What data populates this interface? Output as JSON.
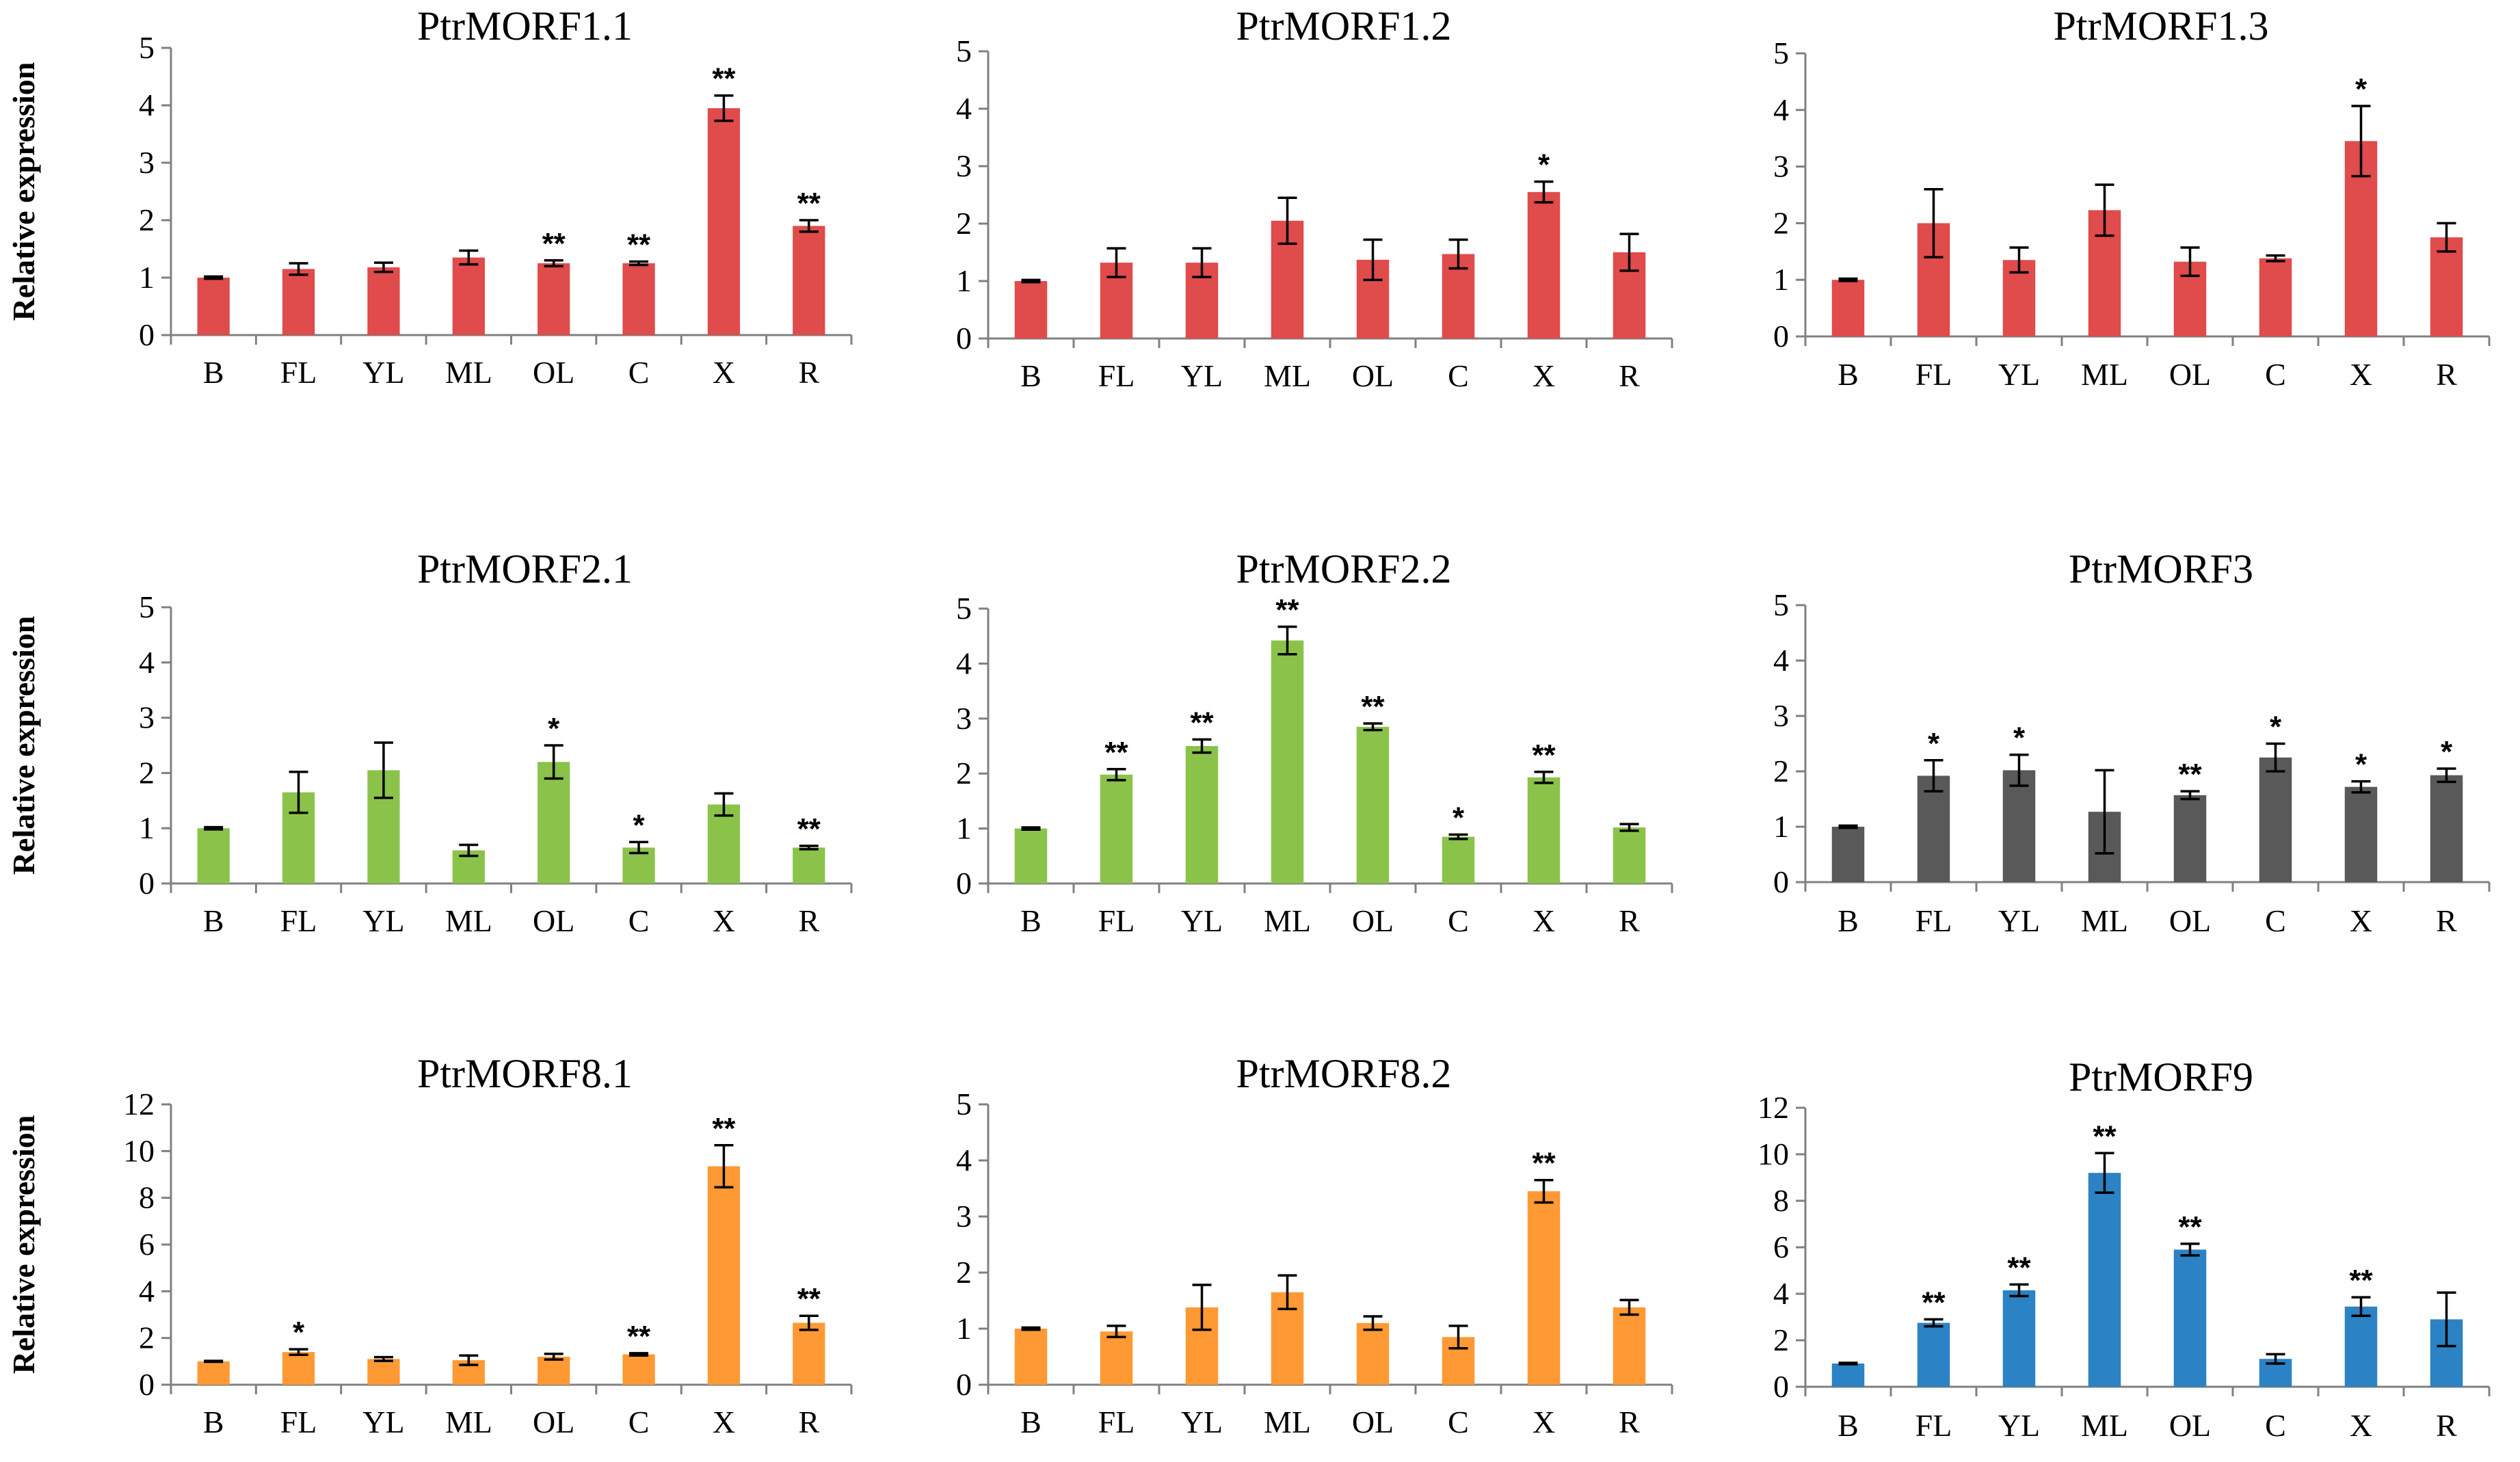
{
  "figure": {
    "y_axis_label": "Relative expression"
  },
  "chart_data": [
    {
      "type": "bar",
      "title": "PtrMORF1.1",
      "color": "#e04b4b",
      "categories": [
        "B",
        "FL",
        "YL",
        "ML",
        "OL",
        "C",
        "X",
        "R"
      ],
      "values": [
        1.0,
        1.15,
        1.18,
        1.35,
        1.25,
        1.25,
        3.95,
        1.9
      ],
      "errors": [
        0.02,
        0.1,
        0.08,
        0.12,
        0.05,
        0.03,
        0.22,
        0.1
      ],
      "significance": [
        "",
        "",
        "",
        "",
        "**",
        "**",
        "**",
        "**"
      ],
      "ylim": [
        0,
        5
      ],
      "yticks": [
        "0",
        "1",
        "2",
        "3",
        "4",
        "5"
      ],
      "ylabel": "Relative expression",
      "xlabel": ""
    },
    {
      "type": "bar",
      "title": "PtrMORF1.2",
      "color": "#e04b4b",
      "categories": [
        "B",
        "FL",
        "YL",
        "ML",
        "OL",
        "C",
        "X",
        "R"
      ],
      "values": [
        1.0,
        1.32,
        1.32,
        2.05,
        1.37,
        1.47,
        2.55,
        1.5
      ],
      "errors": [
        0.02,
        0.25,
        0.25,
        0.4,
        0.35,
        0.25,
        0.18,
        0.32
      ],
      "significance": [
        "",
        "",
        "",
        "",
        "",
        "",
        "*",
        ""
      ],
      "ylim": [
        0,
        5
      ],
      "yticks": [
        "0",
        "1",
        "2",
        "3",
        "4",
        "5"
      ],
      "ylabel": "",
      "xlabel": ""
    },
    {
      "type": "bar",
      "title": "PtrMORF1.3",
      "color": "#e04b4b",
      "categories": [
        "B",
        "FL",
        "YL",
        "ML",
        "OL",
        "C",
        "X",
        "R"
      ],
      "values": [
        1.0,
        2.0,
        1.35,
        2.23,
        1.32,
        1.38,
        3.45,
        1.75
      ],
      "errors": [
        0.02,
        0.6,
        0.22,
        0.45,
        0.25,
        0.05,
        0.62,
        0.25
      ],
      "significance": [
        "",
        "",
        "",
        "",
        "",
        "",
        "*",
        ""
      ],
      "ylim": [
        0,
        5
      ],
      "yticks": [
        "0",
        "1",
        "2",
        "3",
        "4",
        "5"
      ],
      "ylabel": "",
      "xlabel": ""
    },
    {
      "type": "bar",
      "title": "PtrMORF2.1",
      "color": "#8bc34a",
      "categories": [
        "B",
        "FL",
        "YL",
        "ML",
        "OL",
        "C",
        "X",
        "R"
      ],
      "values": [
        1.0,
        1.65,
        2.05,
        0.6,
        2.2,
        0.65,
        1.43,
        0.65
      ],
      "errors": [
        0.02,
        0.37,
        0.5,
        0.1,
        0.3,
        0.1,
        0.2,
        0.03
      ],
      "significance": [
        "",
        "",
        "",
        "",
        "*",
        "*",
        "",
        "**"
      ],
      "ylim": [
        0,
        5
      ],
      "yticks": [
        "0",
        "1",
        "2",
        "3",
        "4",
        "5"
      ],
      "ylabel": "Relative expression",
      "xlabel": ""
    },
    {
      "type": "bar",
      "title": "PtrMORF2.2",
      "color": "#8bc34a",
      "categories": [
        "B",
        "FL",
        "YL",
        "ML",
        "OL",
        "C",
        "X",
        "R"
      ],
      "values": [
        1.0,
        1.98,
        2.5,
        4.42,
        2.85,
        0.85,
        1.93,
        1.02
      ],
      "errors": [
        0.02,
        0.1,
        0.12,
        0.25,
        0.06,
        0.04,
        0.1,
        0.06
      ],
      "significance": [
        "",
        "**",
        "**",
        "**",
        "**",
        "*",
        "**",
        ""
      ],
      "ylim": [
        0,
        5
      ],
      "yticks": [
        "0",
        "1",
        "2",
        "3",
        "4",
        "5"
      ],
      "ylabel": "",
      "xlabel": ""
    },
    {
      "type": "bar",
      "title": "PtrMORF3",
      "color": "#595959",
      "categories": [
        "B",
        "FL",
        "YL",
        "ML",
        "OL",
        "C",
        "X",
        "R"
      ],
      "values": [
        1.0,
        1.92,
        2.02,
        1.27,
        1.57,
        2.25,
        1.72,
        1.93
      ],
      "errors": [
        0.02,
        0.28,
        0.28,
        0.75,
        0.07,
        0.25,
        0.1,
        0.12
      ],
      "significance": [
        "",
        "*",
        "*",
        "",
        "**",
        "*",
        "*",
        "*"
      ],
      "ylim": [
        0,
        5
      ],
      "yticks": [
        "0",
        "1",
        "2",
        "3",
        "4",
        "5"
      ],
      "ylabel": "",
      "xlabel": ""
    },
    {
      "type": "bar",
      "title": "PtrMORF8.1",
      "color": "#ff9933",
      "categories": [
        "B",
        "FL",
        "YL",
        "ML",
        "OL",
        "C",
        "X",
        "R"
      ],
      "values": [
        1.0,
        1.4,
        1.1,
        1.05,
        1.2,
        1.3,
        9.35,
        2.65
      ],
      "errors": [
        0.02,
        0.12,
        0.08,
        0.2,
        0.12,
        0.05,
        0.9,
        0.3
      ],
      "significance": [
        "",
        "*",
        "",
        "",
        "",
        "**",
        "**",
        "**"
      ],
      "ylim": [
        0,
        12
      ],
      "yticks": [
        "0",
        "2",
        "4",
        "6",
        "8",
        "10",
        "12"
      ],
      "ylabel": "Relative expression",
      "xlabel": ""
    },
    {
      "type": "bar",
      "title": "PtrMORF8.2",
      "color": "#ff9933",
      "categories": [
        "B",
        "FL",
        "YL",
        "ML",
        "OL",
        "C",
        "X",
        "R"
      ],
      "values": [
        1.0,
        0.95,
        1.38,
        1.65,
        1.1,
        0.85,
        3.45,
        1.38
      ],
      "errors": [
        0.02,
        0.1,
        0.4,
        0.3,
        0.12,
        0.2,
        0.2,
        0.13
      ],
      "significance": [
        "",
        "",
        "",
        "",
        "",
        "",
        "**",
        ""
      ],
      "ylim": [
        0,
        5
      ],
      "yticks": [
        "0",
        "1",
        "2",
        "3",
        "4",
        "5"
      ],
      "ylabel": "",
      "xlabel": ""
    },
    {
      "type": "bar",
      "title": "PtrMORF9",
      "color": "#2b82c4",
      "categories": [
        "B",
        "FL",
        "YL",
        "ML",
        "OL",
        "C",
        "X",
        "R"
      ],
      "values": [
        1.0,
        2.75,
        4.15,
        9.2,
        5.9,
        1.2,
        3.45,
        2.9
      ],
      "errors": [
        0.03,
        0.15,
        0.25,
        0.85,
        0.25,
        0.2,
        0.4,
        1.15
      ],
      "significance": [
        "",
        "**",
        "**",
        "**",
        "**",
        "",
        "**",
        ""
      ],
      "ylim": [
        0,
        12
      ],
      "yticks": [
        "0",
        "2",
        "4",
        "6",
        "8",
        "10",
        "12"
      ],
      "ylabel": "",
      "xlabel": ""
    }
  ]
}
